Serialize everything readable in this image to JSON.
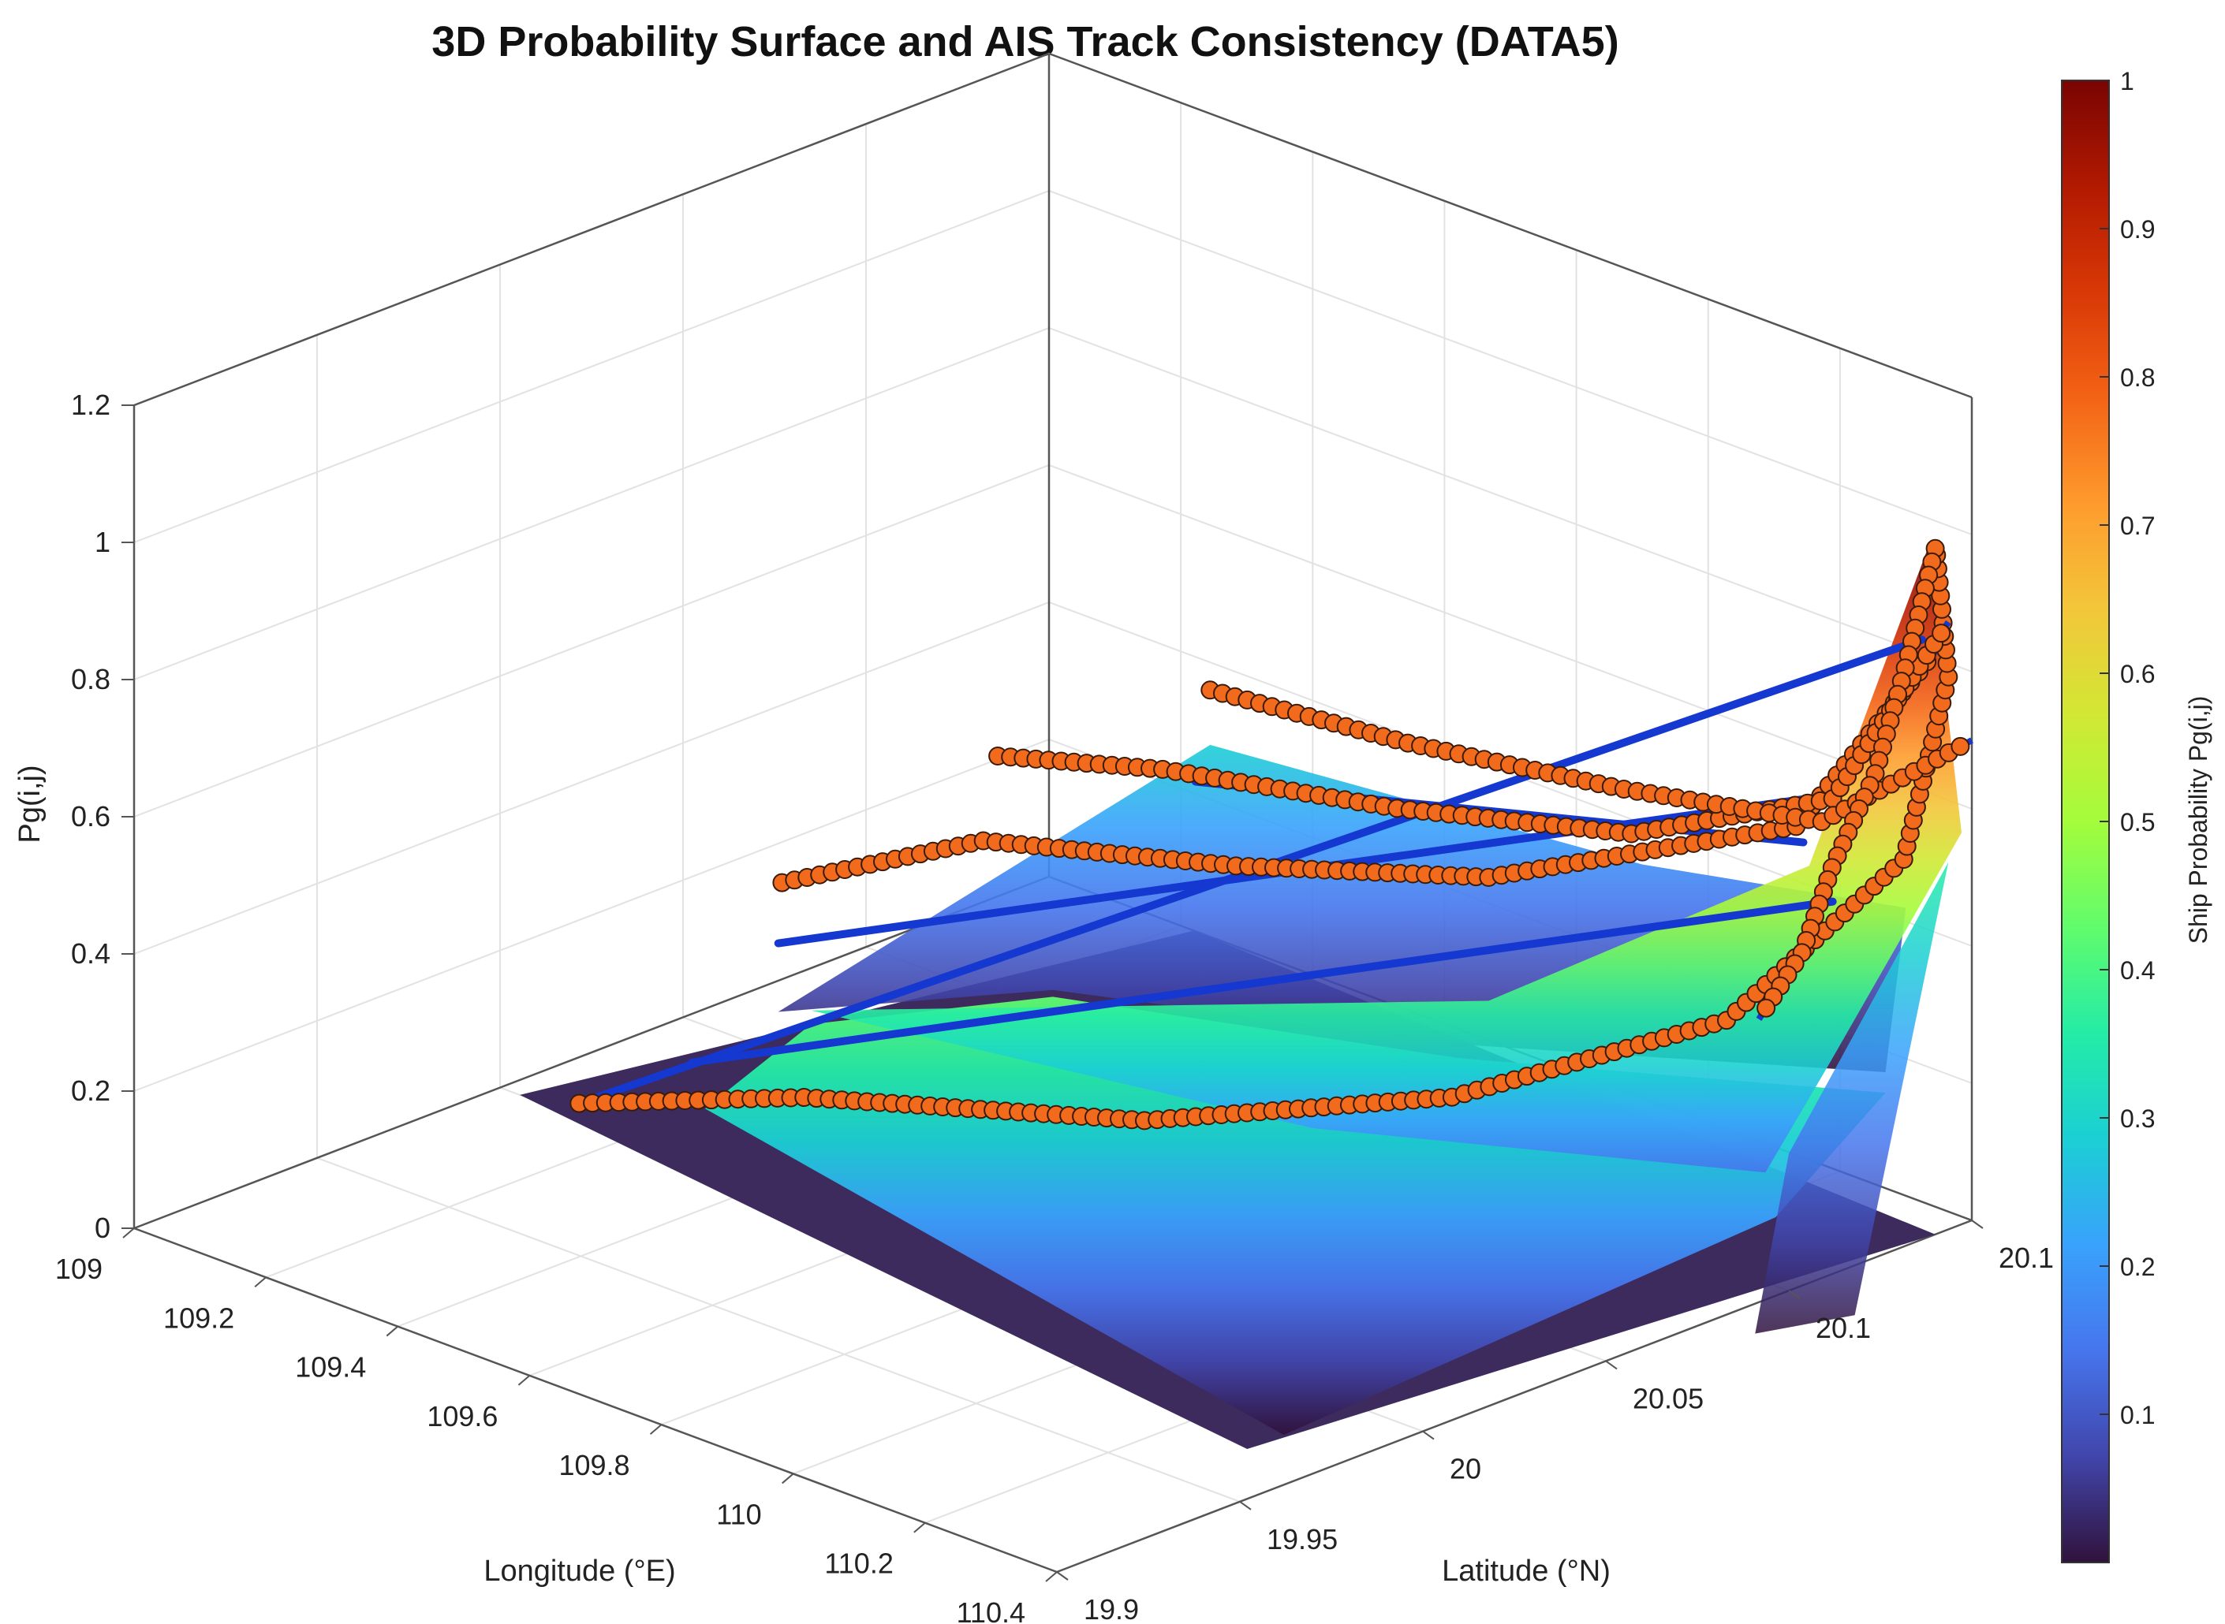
{
  "chart_data": {
    "type": "surface3d",
    "title": "3D Probability Surface and AIS Track Consistency (DATA5)",
    "xlabel": "Longitude (°E)",
    "ylabel": "Latitude (°N)",
    "zlabel": "Pg(i,j)",
    "xlim": [
      109,
      110.4
    ],
    "ylim": [
      19.9,
      20.15
    ],
    "zlim": [
      0,
      1.2
    ],
    "x_ticks": [
      "109",
      "109.2",
      "109.4",
      "109.6",
      "109.8",
      "110",
      "110.2",
      "110.4"
    ],
    "y_ticks": [
      "19.9",
      "19.95",
      "20",
      "20.05",
      "20.1",
      "20.1"
    ],
    "z_ticks": [
      "0",
      "0.2",
      "0.4",
      "0.6",
      "0.8",
      "1",
      "1.2"
    ],
    "colorbar": {
      "label": "Ship Probability Pg(i,j)",
      "ticks": [
        "0.1",
        "0.2",
        "0.3",
        "0.4",
        "0.5",
        "0.6",
        "0.7",
        "0.8",
        "0.9",
        "1"
      ],
      "range": [
        0,
        1
      ],
      "colormap": [
        "#30123b",
        "#4145ab",
        "#4675ed",
        "#39a2fc",
        "#1bcfd4",
        "#24eca6",
        "#61fc6c",
        "#a4fc3b",
        "#d1e834",
        "#f3c63a",
        "#fe9b2d",
        "#f36315",
        "#d93806",
        "#b11901",
        "#7a0402"
      ]
    },
    "grid": true,
    "view": "azimuth -45, elevation 30",
    "marker_color": "#f26b1d",
    "track_color": "#1438d0",
    "ais_tracks": [
      {
        "points": [
          [
            109.12,
            20.0,
            0.02
          ],
          [
            109.35,
            20.02,
            0.07
          ],
          [
            109.7,
            20.05,
            0.1
          ],
          [
            110.0,
            20.08,
            0.18
          ],
          [
            110.25,
            20.11,
            0.32
          ],
          [
            110.38,
            20.135,
            0.55
          ],
          [
            110.42,
            20.14,
            0.82
          ],
          [
            110.4,
            20.14,
            1.01
          ]
        ]
      },
      {
        "points": [
          [
            109.15,
            20.05,
            0.25
          ],
          [
            109.4,
            20.06,
            0.38
          ],
          [
            109.7,
            20.075,
            0.42
          ],
          [
            110.0,
            20.09,
            0.48
          ],
          [
            110.3,
            20.12,
            0.6
          ],
          [
            110.4,
            20.14,
            0.85
          ]
        ]
      },
      {
        "points": [
          [
            109.2,
            20.1,
            0.35
          ],
          [
            109.45,
            20.1,
            0.42
          ],
          [
            109.75,
            20.11,
            0.45
          ],
          [
            110.05,
            20.12,
            0.5
          ],
          [
            110.3,
            20.13,
            0.62
          ],
          [
            110.42,
            20.14,
            0.9
          ]
        ]
      },
      {
        "points": [
          [
            109.3,
            20.14,
            0.4
          ],
          [
            109.6,
            20.14,
            0.43
          ],
          [
            109.9,
            20.145,
            0.46
          ],
          [
            110.2,
            20.145,
            0.52
          ],
          [
            110.4,
            20.15,
            0.7
          ]
        ]
      },
      {
        "points": [
          [
            110.4,
            20.14,
            1.0
          ],
          [
            110.41,
            20.13,
            0.85
          ],
          [
            110.42,
            20.12,
            0.72
          ],
          [
            110.41,
            20.11,
            0.6
          ],
          [
            110.42,
            20.1,
            0.5
          ],
          [
            110.41,
            20.09,
            0.42
          ]
        ]
      }
    ],
    "track_segments": [
      {
        "from": [
          109.12,
          20.0,
          0.02
        ],
        "to": [
          110.38,
          20.14,
          0.86
        ]
      },
      {
        "from": [
          109.2,
          20.04,
          0.2
        ],
        "to": [
          110.2,
          20.15,
          0.55
        ]
      },
      {
        "from": [
          109.18,
          20.02,
          0.06
        ],
        "to": [
          110.3,
          20.13,
          0.47
        ]
      },
      {
        "from": [
          109.5,
          20.1,
          0.42
        ],
        "to": [
          110.2,
          20.14,
          0.5
        ]
      }
    ]
  }
}
